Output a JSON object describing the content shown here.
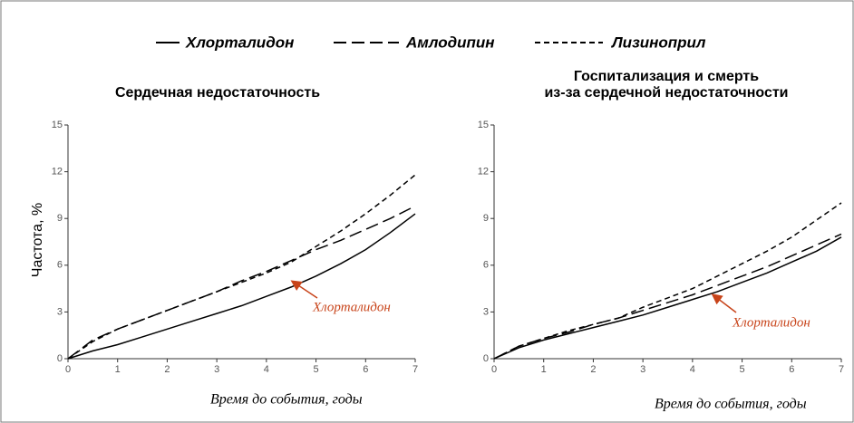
{
  "legend": [
    {
      "name": "Хлорталидон",
      "dash": "none"
    },
    {
      "name": "Амлодипин",
      "dash": "14 6"
    },
    {
      "name": "Лизиноприл",
      "dash": "6 4"
    }
  ],
  "chart_data": [
    {
      "type": "line",
      "title": [
        "Сердечная недостаточность"
      ],
      "ylabel": "Частота, %",
      "xlabel": "Время до события, годы",
      "annotation": "Хлорталидон",
      "x": [
        0,
        0.5,
        1,
        1.5,
        2,
        2.5,
        3,
        3.5,
        4,
        4.5,
        5,
        5.5,
        6,
        6.5,
        7
      ],
      "series": [
        {
          "legend": 0,
          "color": "#000000",
          "values": [
            0,
            0.5,
            0.9,
            1.4,
            1.9,
            2.4,
            2.9,
            3.4,
            4.0,
            4.6,
            5.3,
            6.1,
            7.0,
            8.1,
            9.3
          ]
        },
        {
          "legend": 1,
          "color": "#000000",
          "values": [
            0,
            1.2,
            1.9,
            2.5,
            3.1,
            3.7,
            4.3,
            5.0,
            5.6,
            6.3,
            7.0,
            7.6,
            8.3,
            9.0,
            9.8
          ]
        },
        {
          "legend": 2,
          "color": "#000000",
          "values": [
            0,
            1.1,
            1.9,
            2.5,
            3.1,
            3.7,
            4.3,
            4.9,
            5.5,
            6.2,
            7.2,
            8.2,
            9.3,
            10.5,
            11.8
          ]
        }
      ],
      "xlim": [
        0,
        7
      ],
      "ylim": [
        0,
        15
      ],
      "xticks": [
        0,
        1,
        2,
        3,
        4,
        5,
        6,
        7
      ],
      "yticks": [
        0,
        3,
        6,
        9,
        12,
        15
      ]
    },
    {
      "type": "line",
      "title": [
        "Госпитализация и смерть",
        "из-за сердечной недостаточности"
      ],
      "xlabel": "Время до события, годы",
      "annotation": "Хлорталидон",
      "x": [
        0,
        0.5,
        1,
        1.5,
        2,
        2.5,
        3,
        3.5,
        4,
        4.5,
        5,
        5.5,
        6,
        6.5,
        7
      ],
      "series": [
        {
          "legend": 0,
          "color": "#000000",
          "values": [
            0,
            0.7,
            1.2,
            1.6,
            2.0,
            2.4,
            2.8,
            3.3,
            3.8,
            4.3,
            4.9,
            5.5,
            6.2,
            6.9,
            7.8
          ]
        },
        {
          "legend": 1,
          "color": "#000000",
          "values": [
            0,
            0.8,
            1.3,
            1.7,
            2.2,
            2.6,
            3.1,
            3.6,
            4.1,
            4.7,
            5.3,
            5.9,
            6.6,
            7.3,
            8.0
          ]
        },
        {
          "legend": 2,
          "color": "#000000",
          "values": [
            0,
            0.8,
            1.3,
            1.8,
            2.2,
            2.6,
            3.3,
            3.9,
            4.5,
            5.3,
            6.1,
            6.9,
            7.8,
            8.9,
            10.0
          ]
        }
      ],
      "xlim": [
        0,
        7
      ],
      "ylim": [
        0,
        15
      ],
      "xticks": [
        0,
        1,
        2,
        3,
        4,
        5,
        6,
        7
      ],
      "yticks": [
        0,
        3,
        6,
        9,
        12,
        15
      ]
    }
  ]
}
